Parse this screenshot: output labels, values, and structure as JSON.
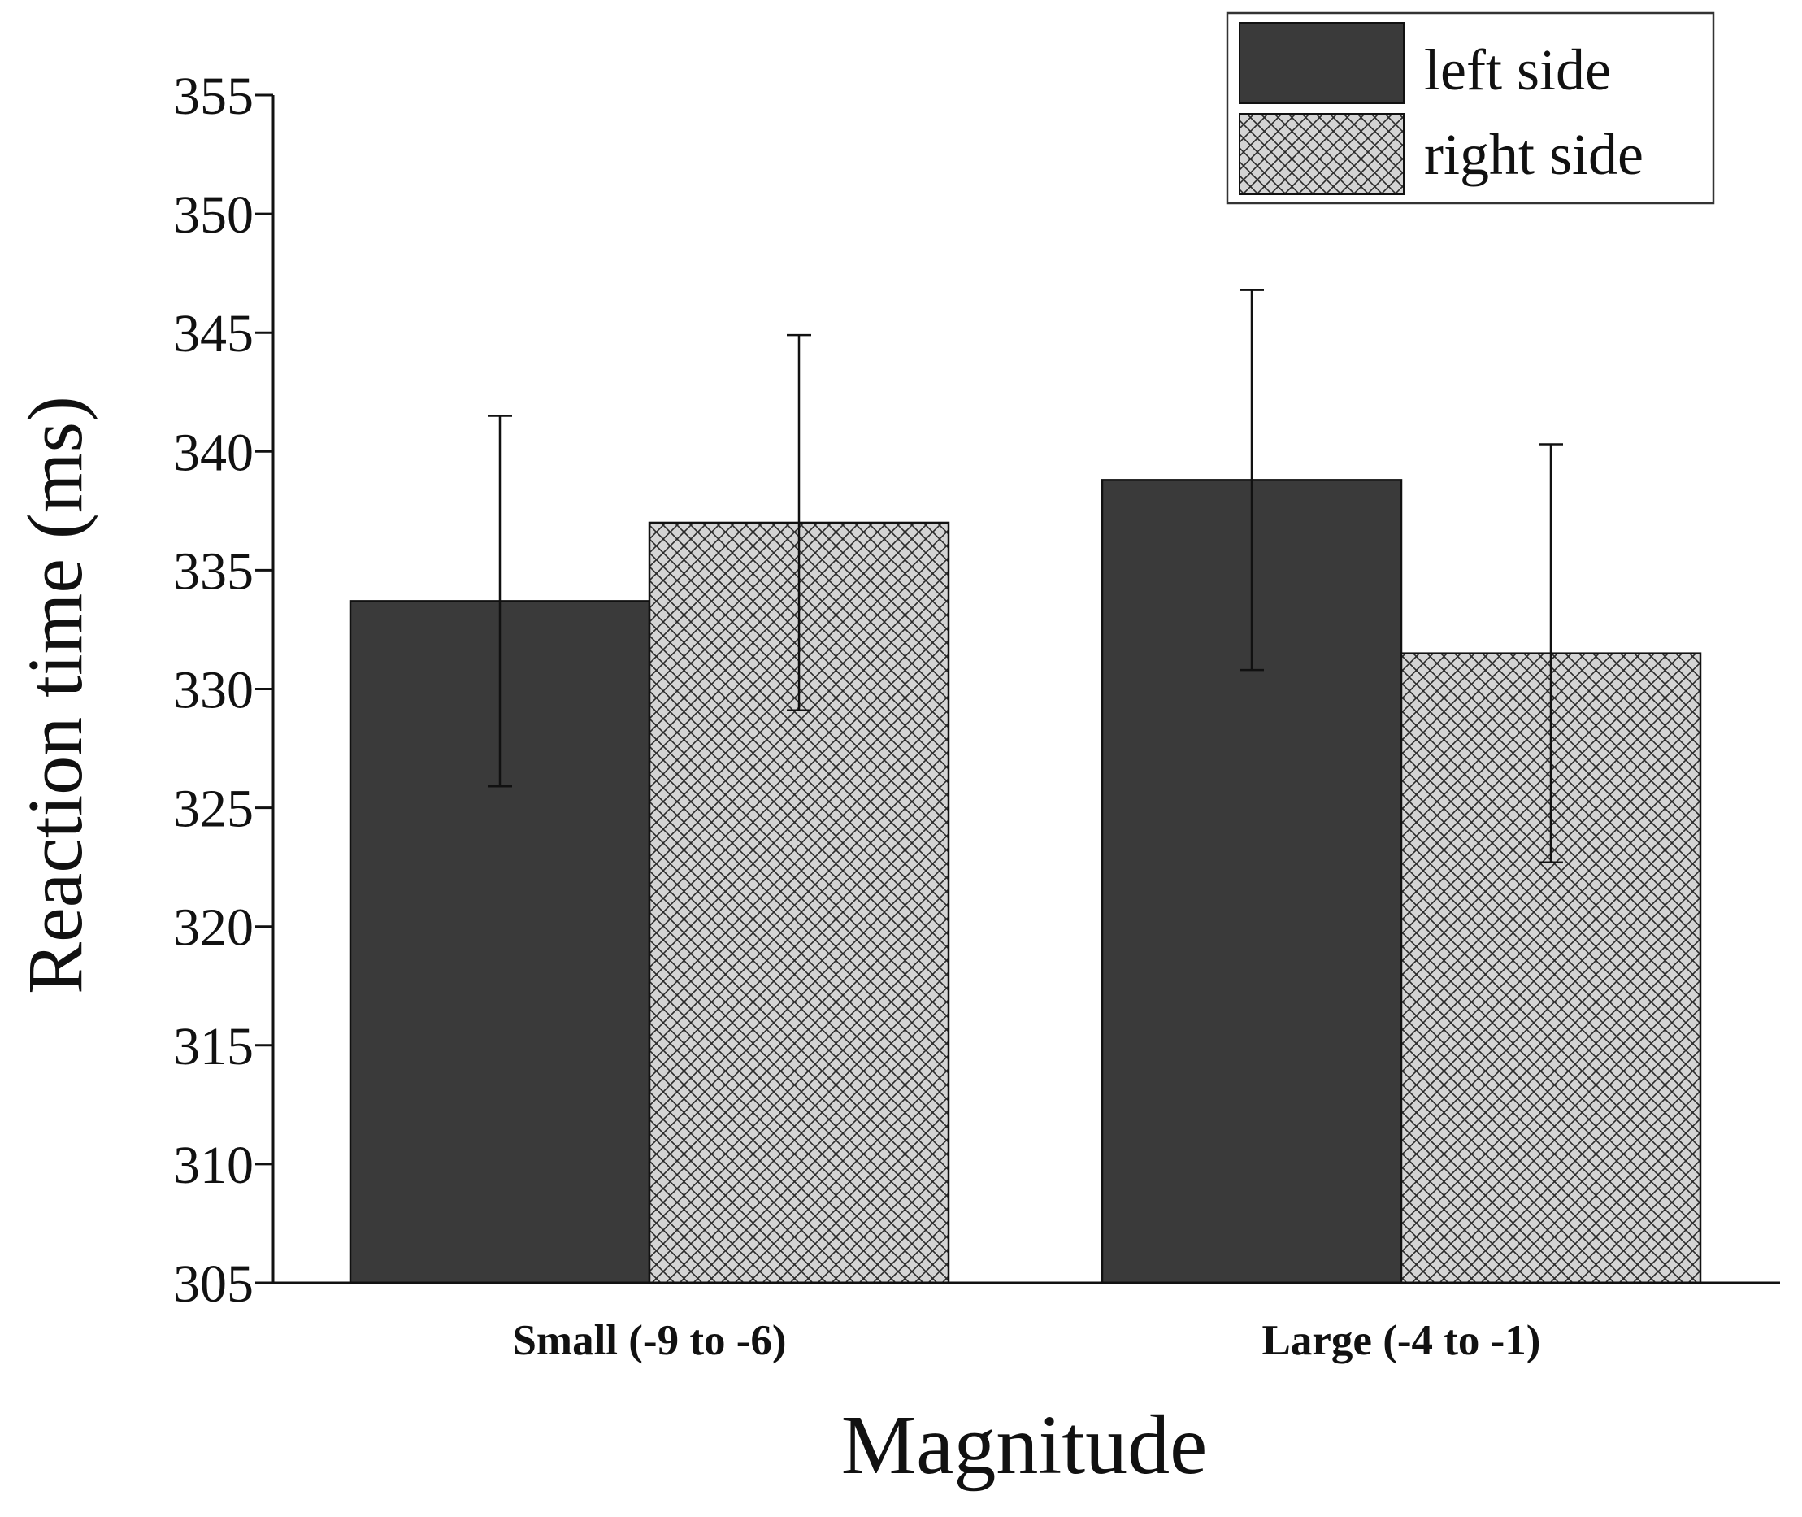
{
  "chart_data": {
    "type": "bar",
    "title": "",
    "xlabel": "Magnitude",
    "ylabel": "Reaction time (ms)",
    "categories": [
      "Small (-9 to -6)",
      "Large (-4 to -1)"
    ],
    "ylim": [
      305,
      355
    ],
    "yticks": [
      305,
      310,
      315,
      320,
      325,
      330,
      335,
      340,
      345,
      350,
      355
    ],
    "grid": false,
    "legend_position": "top-right",
    "series": [
      {
        "name": "left side",
        "values": [
          333.7,
          338.8
        ],
        "errors": [
          7.8,
          8.0
        ],
        "color": "#3a3a3a",
        "pattern": "solid"
      },
      {
        "name": "right side",
        "values": [
          337.0,
          331.5
        ],
        "errors": [
          7.9,
          8.8
        ],
        "color": "#d4d4d4",
        "pattern": "crosshatch"
      }
    ]
  }
}
